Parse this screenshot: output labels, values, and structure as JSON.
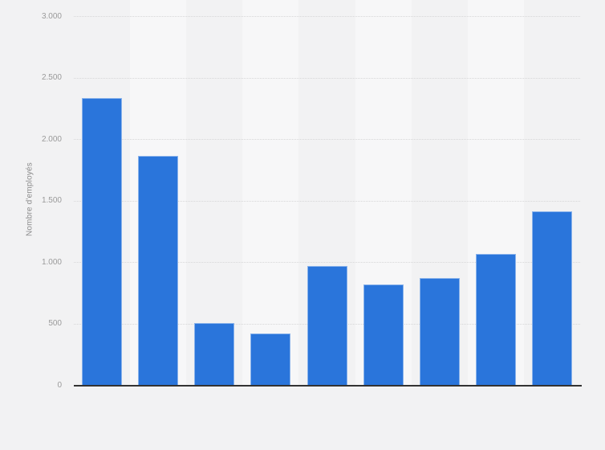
{
  "chart_data": {
    "type": "bar",
    "title": "",
    "ylabel": "Nombre d'employés",
    "xlabel": "",
    "categories": [
      "",
      "",
      "",
      "",
      "",
      "",
      "",
      "",
      ""
    ],
    "values": [
      2340,
      1870,
      510,
      425,
      970,
      825,
      875,
      1070,
      1420
    ],
    "ylim": [
      0,
      3000
    ],
    "ytick_interval": 500,
    "yticks": [
      {
        "value": 0,
        "label": "0"
      },
      {
        "value": 500,
        "label": "500"
      },
      {
        "value": 1000,
        "label": "1.000"
      },
      {
        "value": 1500,
        "label": "1.500"
      },
      {
        "value": 2000,
        "label": "2.000"
      },
      {
        "value": 2500,
        "label": "2.500"
      },
      {
        "value": 3000,
        "label": "3.000"
      }
    ],
    "grid": "horizontal-dotted",
    "legend": "none",
    "x_axis_labels_visible": false,
    "colors": {
      "bar": "#2a75db",
      "band_dark": "#f2f2f3",
      "band_light": "#f7f7f8",
      "gridline": "#d7d7d8",
      "axis_line": "#333333",
      "tick_text": "#9a9a9a",
      "axis_title_text": "#8c8c8c",
      "background": "#f2f2f3"
    }
  }
}
